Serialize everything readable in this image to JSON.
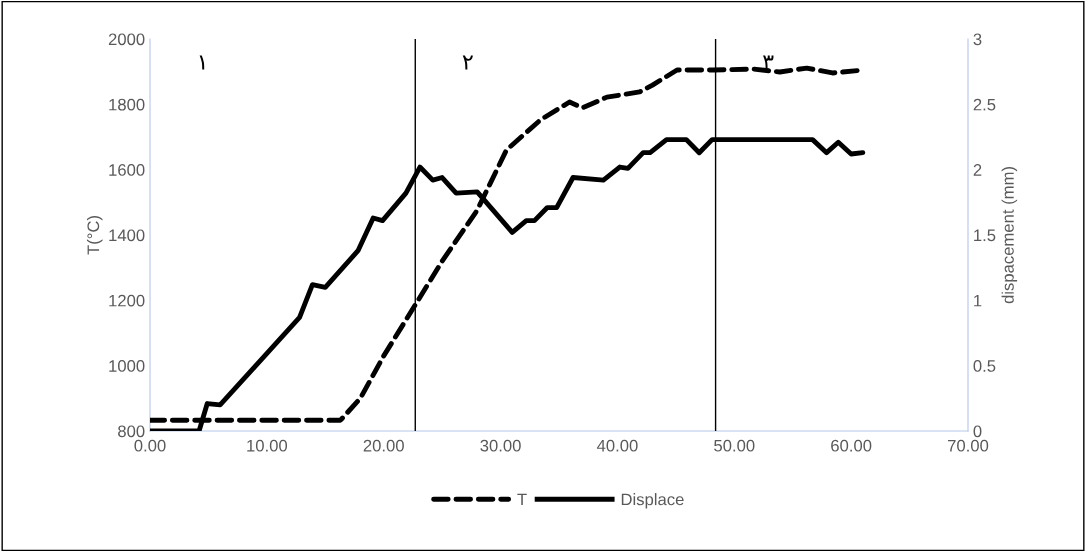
{
  "chart_data": {
    "type": "line",
    "ylabel": "T(°C)",
    "y2label": "dispacement (mm)",
    "xlim": [
      0,
      70
    ],
    "xticks": [
      {
        "value": 0,
        "label": "0.00"
      },
      {
        "value": 10,
        "label": "10.00"
      },
      {
        "value": 20,
        "label": "20.00"
      },
      {
        "value": 30,
        "label": "30.00"
      },
      {
        "value": 40,
        "label": "40.00"
      },
      {
        "value": 50,
        "label": "50.00"
      },
      {
        "value": 60,
        "label": "60.00"
      },
      {
        "value": 70,
        "label": "70.00"
      }
    ],
    "ylim": [
      800,
      2000
    ],
    "yticks": [
      800,
      1000,
      1200,
      1400,
      1600,
      1800,
      2000
    ],
    "y2lim": [
      0,
      3
    ],
    "y2ticks": [
      0,
      0.5,
      1,
      1.5,
      2,
      2.5,
      3
    ],
    "series": [
      {
        "name": "T",
        "color": "#000000",
        "line_style": "dashed",
        "x": [
          0,
          4,
          10,
          16.3,
          18,
          20,
          22.7,
          25,
          28,
          30.5,
          33.4,
          35.9,
          37.0,
          39.1,
          41.9,
          43.0,
          45.1,
          48.2,
          51.6,
          53.9,
          56.2,
          58.4,
          61.0
        ],
        "values": [
          833,
          833,
          833,
          833,
          900,
          1030,
          1186,
          1320,
          1476,
          1660,
          1752,
          1807,
          1789,
          1822,
          1838,
          1859,
          1905,
          1905,
          1908,
          1899,
          1911,
          1896,
          1905
        ]
      },
      {
        "name": "Displace",
        "color": "#000000",
        "line_style": "solid",
        "axis": "y2",
        "x": [
          0,
          4.2,
          4.9,
          6.0,
          12.8,
          13.9,
          15.0,
          17.8,
          19.1,
          19.9,
          21.9,
          23.1,
          24.2,
          25.0,
          26.2,
          28.0,
          31.0,
          32.2,
          32.9,
          34.0,
          34.8,
          36.2,
          38.8,
          40.2,
          40.9,
          42.2,
          42.8,
          44.2,
          45.9,
          47.0,
          48.1,
          56.7,
          57.9,
          58.9,
          60.0,
          61.0
        ],
        "values": [
          0,
          0,
          0.21,
          0.2,
          0.87,
          1.12,
          1.1,
          1.38,
          1.63,
          1.61,
          1.82,
          2.02,
          1.92,
          1.94,
          1.82,
          1.83,
          1.52,
          1.61,
          1.61,
          1.71,
          1.71,
          1.94,
          1.92,
          2.02,
          2.01,
          2.13,
          2.13,
          2.23,
          2.23,
          2.13,
          2.23,
          2.23,
          2.13,
          2.21,
          2.12,
          2.13
        ]
      }
    ],
    "ref_lines": [
      {
        "axis": "x",
        "value": 22.7,
        "color": "#000000"
      },
      {
        "axis": "x",
        "value": 48.4,
        "color": "#000000"
      }
    ],
    "annotations": [
      "١",
      "٢",
      "٣"
    ],
    "legend": "bottom",
    "grid": false
  }
}
